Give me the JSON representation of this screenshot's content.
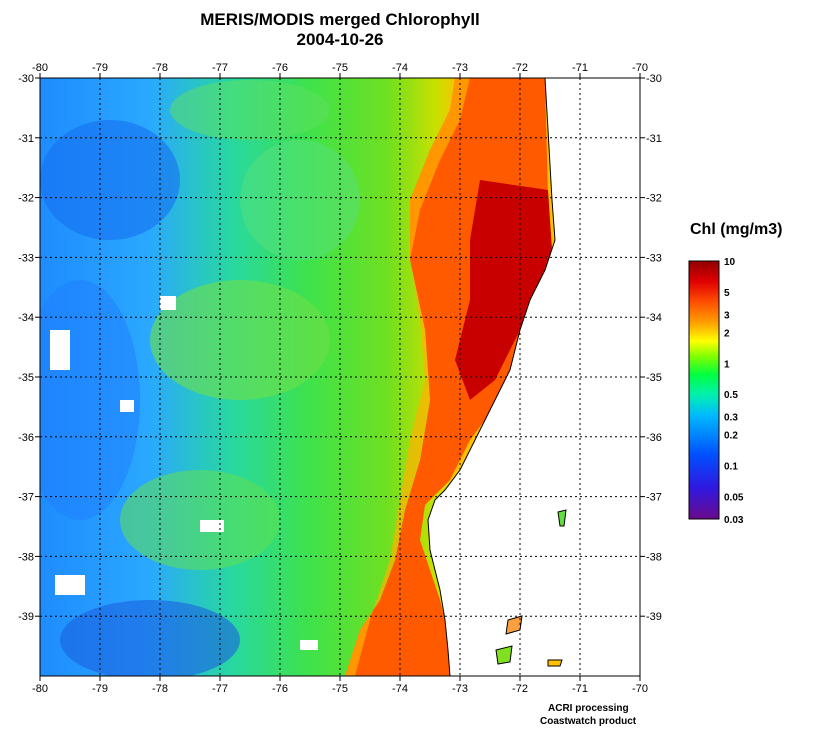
{
  "title": "MERIS/MODIS merged Chlorophyll",
  "date": "2004-10-26",
  "map": {
    "lon_range": [
      -80,
      -70
    ],
    "lat_range": [
      -40,
      -30
    ],
    "lon_ticks": [
      "-80",
      "-79",
      "-78",
      "-77",
      "-76",
      "-75",
      "-74",
      "-73",
      "-72",
      "-71",
      "-70"
    ],
    "lat_ticks": [
      "-30",
      "-31",
      "-32",
      "-33",
      "-34",
      "-35",
      "-36",
      "-37",
      "-38",
      "-39"
    ],
    "grid": "dotted",
    "land_color": "#ffffff"
  },
  "colorbar": {
    "title": "Chl (mg/m3)",
    "labels": [
      "10",
      "5",
      "3",
      "2",
      "1",
      "0.5",
      "0.3",
      "0.2",
      "0.1",
      "0.05",
      "0.03"
    ],
    "values": [
      10,
      5,
      3,
      2,
      1,
      0.5,
      0.3,
      0.2,
      0.1,
      0.05,
      0.03
    ],
    "range": [
      0.03,
      10
    ],
    "scale": "log",
    "colors": [
      "#6a0a8c",
      "#2020ff",
      "#00a8ff",
      "#00e0ff",
      "#00ff40",
      "#60ff00",
      "#ffff00",
      "#ffa000",
      "#ff4000",
      "#d00000",
      "#800000"
    ]
  },
  "credits": [
    "ACRI processing",
    "Coastwatch product"
  ]
}
